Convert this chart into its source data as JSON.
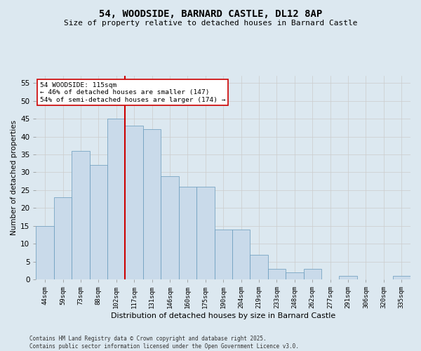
{
  "title_line1": "54, WOODSIDE, BARNARD CASTLE, DL12 8AP",
  "title_line2": "Size of property relative to detached houses in Barnard Castle",
  "xlabel": "Distribution of detached houses by size in Barnard Castle",
  "ylabel": "Number of detached properties",
  "categories": [
    "44sqm",
    "59sqm",
    "73sqm",
    "88sqm",
    "102sqm",
    "117sqm",
    "131sqm",
    "146sqm",
    "160sqm",
    "175sqm",
    "190sqm",
    "204sqm",
    "219sqm",
    "233sqm",
    "248sqm",
    "262sqm",
    "277sqm",
    "291sqm",
    "306sqm",
    "320sqm",
    "335sqm"
  ],
  "values": [
    15,
    23,
    36,
    32,
    45,
    43,
    42,
    29,
    26,
    26,
    14,
    14,
    7,
    3,
    2,
    3,
    0,
    1,
    0,
    0,
    1
  ],
  "bar_color": "#c9daea",
  "bar_edge_color": "#6699bb",
  "vline_color": "#cc0000",
  "annotation_text": "54 WOODSIDE: 115sqm\n← 46% of detached houses are smaller (147)\n54% of semi-detached houses are larger (174) →",
  "annotation_box_facecolor": "#ffffff",
  "annotation_box_edgecolor": "#cc0000",
  "ylim": [
    0,
    57
  ],
  "yticks": [
    0,
    5,
    10,
    15,
    20,
    25,
    30,
    35,
    40,
    45,
    50,
    55
  ],
  "grid_color": "#cccccc",
  "bg_color": "#dce8f0",
  "footer_line1": "Contains HM Land Registry data © Crown copyright and database right 2025.",
  "footer_line2": "Contains public sector information licensed under the Open Government Licence v3.0."
}
